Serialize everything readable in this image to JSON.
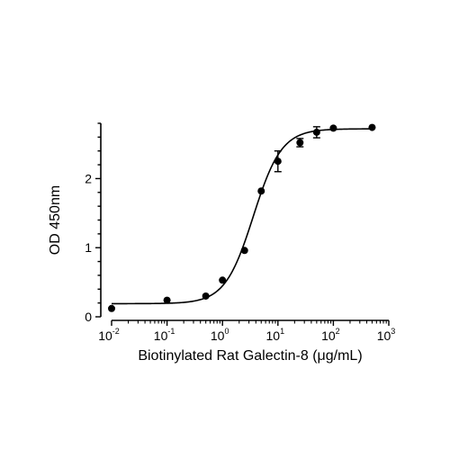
{
  "chart_data": {
    "type": "scatter",
    "xlabel": "Biotinylated Rat Galectin-8 (μg/mL)",
    "ylabel": "OD 450nm",
    "xscale": "log",
    "xlim": [
      0.01,
      1000
    ],
    "ylim": [
      0,
      2.8
    ],
    "grid": false,
    "legend": "none",
    "x_ticks": [
      {
        "base": "10",
        "exp": "-2",
        "value": 0.01
      },
      {
        "base": "10",
        "exp": "-1",
        "value": 0.1
      },
      {
        "base": "10",
        "exp": "0",
        "value": 1
      },
      {
        "base": "10",
        "exp": "1",
        "value": 10
      },
      {
        "base": "10",
        "exp": "2",
        "value": 100
      },
      {
        "base": "10",
        "exp": "3",
        "value": 1000
      }
    ],
    "y_ticks": [
      {
        "label": "0",
        "value": 0
      },
      {
        "label": "1",
        "value": 1
      },
      {
        "label": "2",
        "value": 2
      }
    ],
    "series": [
      {
        "points": [
          {
            "x": 0.01,
            "y": 0.12,
            "err": 0.02
          },
          {
            "x": 0.1,
            "y": 0.24,
            "err": 0.02
          },
          {
            "x": 0.5,
            "y": 0.3,
            "err": 0.02
          },
          {
            "x": 1,
            "y": 0.53,
            "err": 0.02
          },
          {
            "x": 2.5,
            "y": 0.96,
            "err": 0.02
          },
          {
            "x": 5,
            "y": 1.82,
            "err": 0.03
          },
          {
            "x": 10,
            "y": 2.25,
            "err": 0.15
          },
          {
            "x": 25,
            "y": 2.52,
            "err": 0.06
          },
          {
            "x": 50,
            "y": 2.67,
            "err": 0.08
          },
          {
            "x": 100,
            "y": 2.73,
            "err": 0.02
          },
          {
            "x": 500,
            "y": 2.74,
            "err": 0.02
          }
        ],
        "fit": {
          "model": "4PL",
          "bottom": 0.19,
          "top": 2.72,
          "ec50": 3.6,
          "hill": 1.7
        }
      }
    ],
    "colors": {
      "points": "#000000",
      "fit_line": "#000000",
      "axes": "#000000"
    }
  }
}
